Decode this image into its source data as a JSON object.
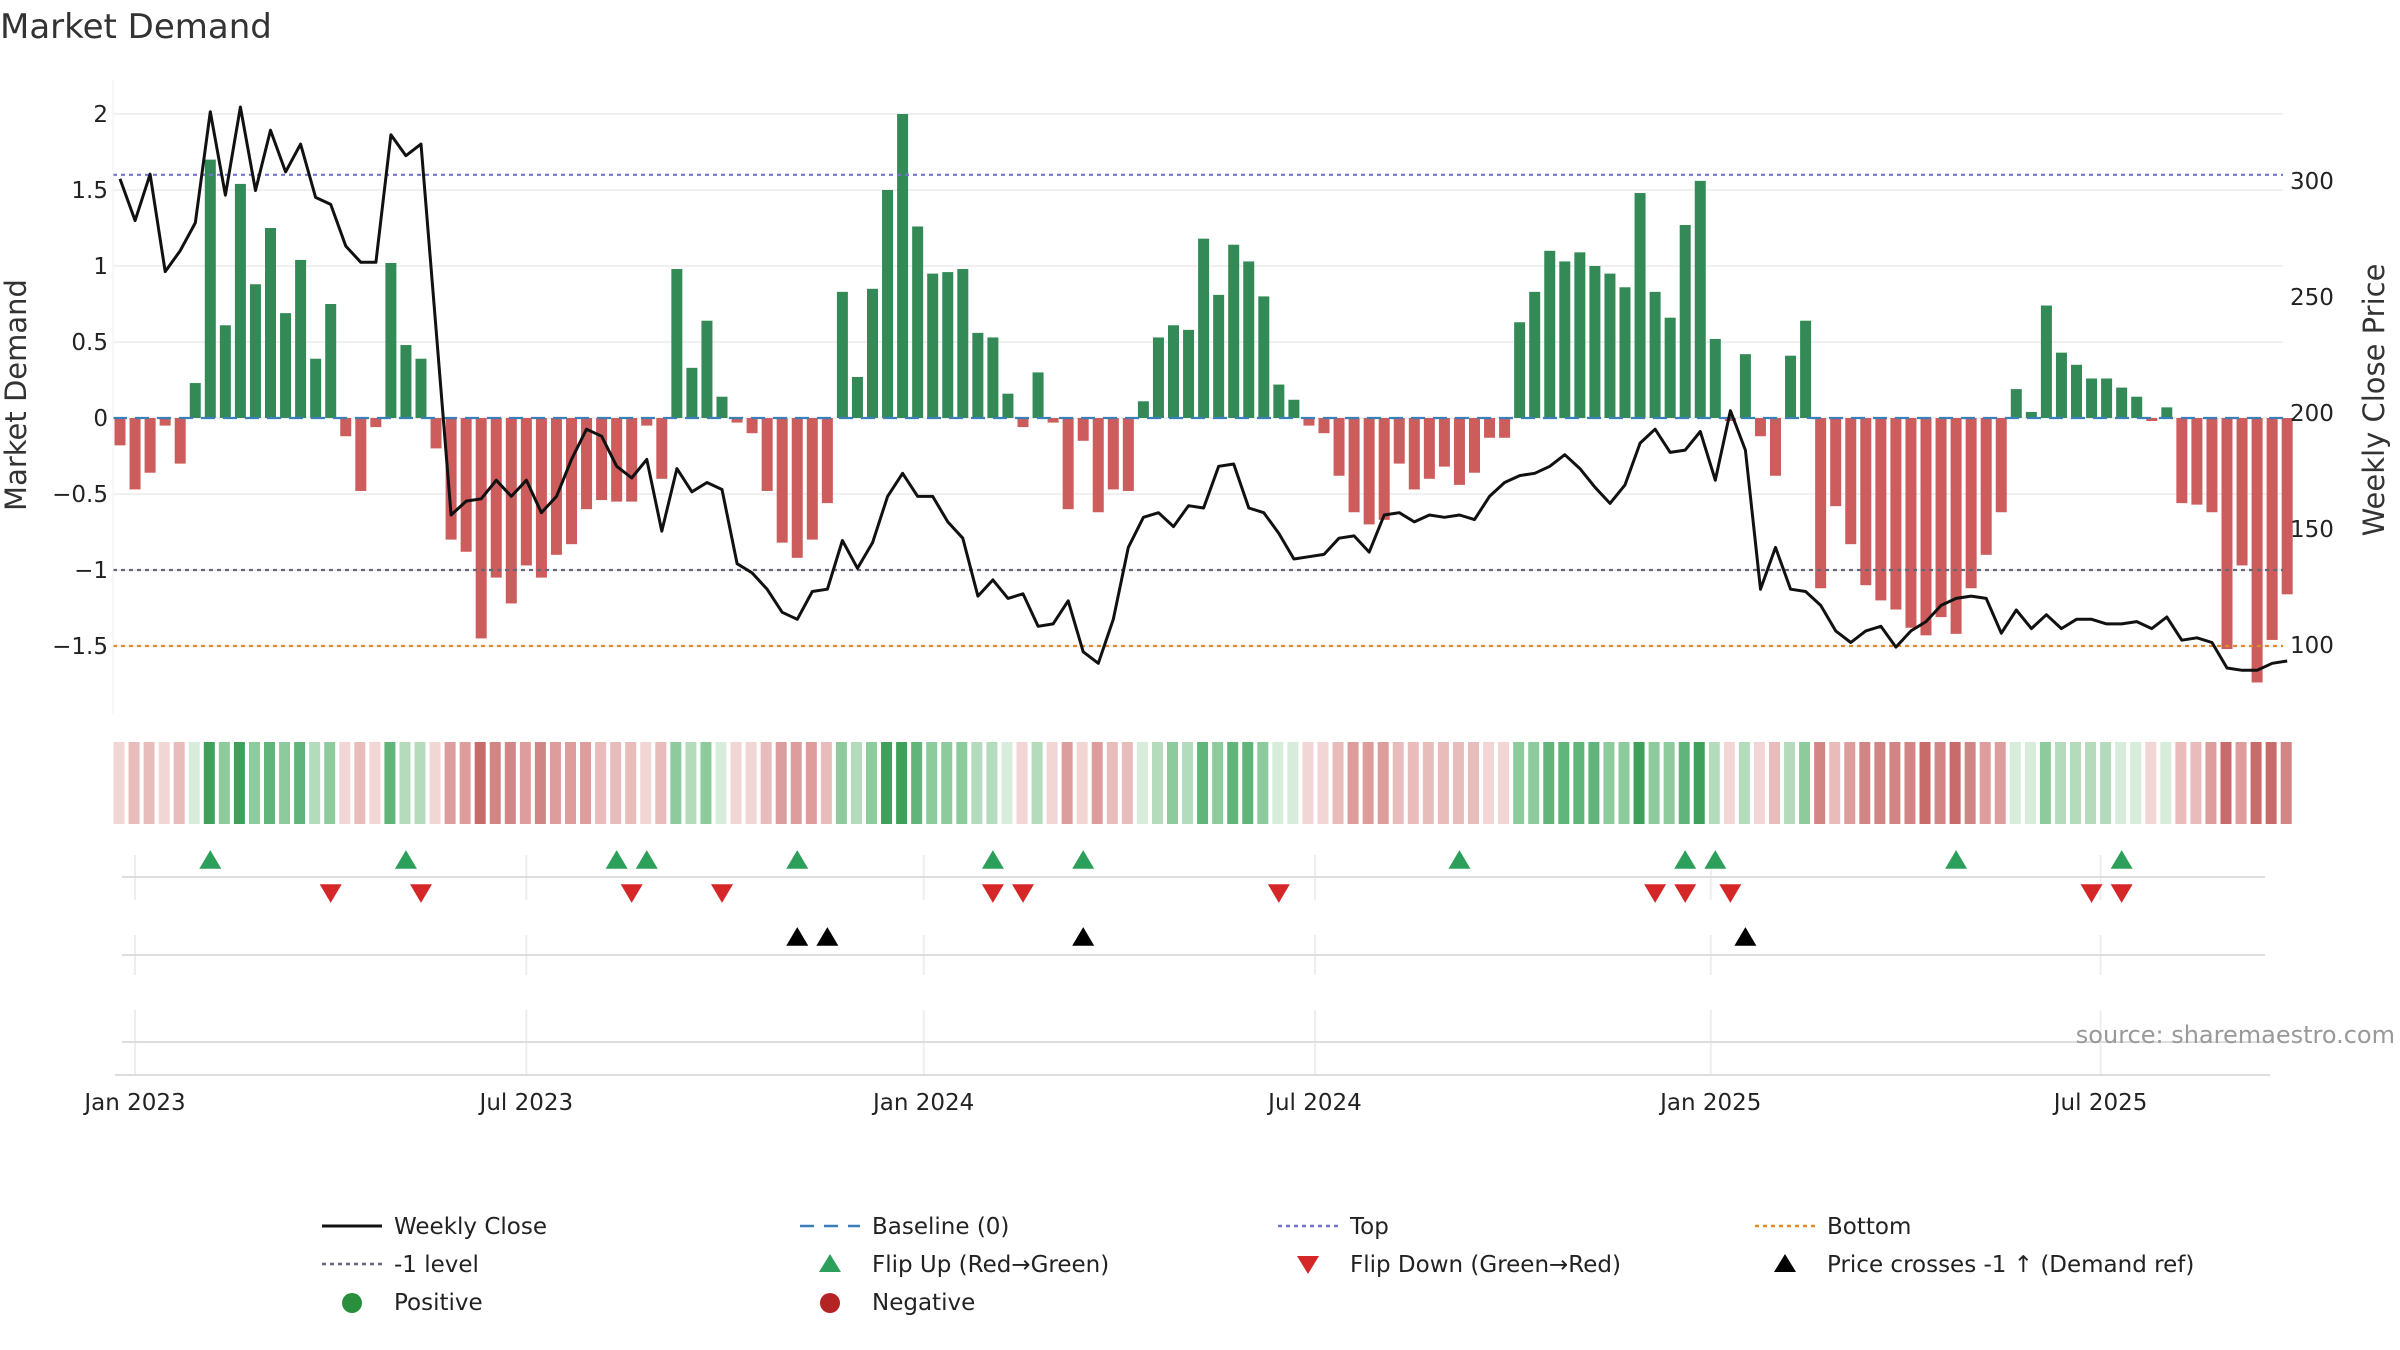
{
  "chart_data": {
    "type": "bar",
    "title": "Market Demand",
    "ylabel": "Market Demand",
    "y2label": "Weekly Close Price",
    "ylim": [
      -1.95,
      2.2
    ],
    "y2lim": [
      67,
      336
    ],
    "yticks": [
      2,
      1.5,
      1,
      0.5,
      0,
      -0.5,
      -1,
      -1.5
    ],
    "ytick_labels": [
      "2",
      "1.5",
      "1",
      "0.5",
      "0",
      "−0.5",
      "−1",
      "−1.5"
    ],
    "y2ticks": [
      300,
      250,
      200,
      150,
      100
    ],
    "y2tick_labels": [
      "300",
      "250",
      "200",
      "150",
      "100"
    ],
    "xticks": [
      {
        "label": "Jan 2023",
        "week": 1
      },
      {
        "label": "Jul 2023",
        "week": 27
      },
      {
        "label": "Jan 2024",
        "week": 53.4
      },
      {
        "label": "Jul 2024",
        "week": 79.4
      },
      {
        "label": "Jan 2025",
        "week": 105.7
      },
      {
        "label": "Jul 2025",
        "week": 131.6
      }
    ],
    "reference_lines": {
      "top": 1.6,
      "minus_one": -1.0,
      "bottom": -1.5,
      "baseline": 0
    },
    "demand": [
      -0.18,
      -0.47,
      -0.36,
      -0.05,
      -0.3,
      0.23,
      1.7,
      0.61,
      1.54,
      0.88,
      1.25,
      0.69,
      1.04,
      0.39,
      0.75,
      -0.12,
      -0.48,
      -0.06,
      1.02,
      0.48,
      0.39,
      -0.2,
      -0.8,
      -0.88,
      -1.45,
      -1.05,
      -1.22,
      -0.97,
      -1.05,
      -0.9,
      -0.83,
      -0.6,
      -0.54,
      -0.55,
      -0.55,
      -0.05,
      -0.4,
      0.98,
      0.33,
      0.64,
      0.14,
      -0.03,
      -0.1,
      -0.48,
      -0.82,
      -0.92,
      -0.8,
      -0.56,
      0.83,
      0.27,
      0.85,
      1.5,
      2.0,
      1.26,
      0.95,
      0.96,
      0.98,
      0.56,
      0.53,
      0.16,
      -0.06,
      0.3,
      -0.03,
      -0.6,
      -0.15,
      -0.62,
      -0.47,
      -0.48,
      0.11,
      0.53,
      0.61,
      0.58,
      1.18,
      0.81,
      1.14,
      1.03,
      0.8,
      0.22,
      0.12,
      -0.05,
      -0.1,
      -0.38,
      -0.62,
      -0.7,
      -0.67,
      -0.3,
      -0.47,
      -0.4,
      -0.32,
      -0.44,
      -0.36,
      -0.13,
      -0.13,
      0.63,
      0.83,
      1.1,
      1.03,
      1.09,
      1.0,
      0.95,
      0.86,
      1.48,
      0.83,
      0.66,
      1.27,
      1.56,
      0.52,
      -0.02,
      0.42,
      -0.12,
      -0.38,
      0.41,
      0.64,
      -1.12,
      -0.58,
      -0.83,
      -1.1,
      -1.2,
      -1.26,
      -1.38,
      -1.43,
      -1.31,
      -1.42,
      -1.12,
      -0.9,
      -0.62,
      0.19,
      0.04,
      0.74,
      0.43,
      0.35,
      0.26,
      0.26,
      0.2,
      0.14,
      -0.02,
      0.07,
      -0.56,
      -0.57,
      -0.62,
      -1.52,
      -0.97,
      -1.74,
      -1.46,
      -1.16
    ],
    "price": [
      301,
      283,
      303,
      261,
      270,
      282,
      330,
      294,
      332,
      296,
      322,
      304,
      316,
      293,
      290,
      272,
      265,
      265,
      320,
      311,
      316,
      236,
      156,
      162,
      163,
      171,
      164,
      171,
      157,
      164,
      180,
      193,
      190,
      177,
      172,
      180,
      149,
      176,
      166,
      170,
      167,
      135,
      131,
      124,
      114,
      111,
      123,
      124,
      145,
      133,
      144,
      164,
      174,
      164,
      164,
      153,
      146,
      121,
      128,
      120,
      122,
      108,
      109,
      119,
      97,
      92,
      111,
      142,
      155,
      157,
      151,
      160,
      159,
      177,
      178,
      159,
      157,
      148,
      137,
      138,
      139,
      146,
      147,
      140,
      156,
      157,
      153,
      156,
      155,
      156,
      154,
      164,
      170,
      173,
      174,
      177,
      182,
      176,
      168,
      161,
      169,
      187,
      193,
      183,
      184,
      192,
      171,
      201,
      184,
      124,
      142,
      124,
      123,
      117,
      106,
      101,
      106,
      108,
      99,
      106,
      110,
      117,
      120,
      121,
      120,
      105,
      115,
      107,
      113,
      107,
      111,
      111,
      109,
      109,
      110,
      107,
      112,
      102,
      103,
      101,
      90,
      89,
      89,
      92,
      93
    ],
    "color_band": {
      "positive_colors": [
        "#d7ecdb",
        "#b5dbbd",
        "#8ecb9c",
        "#62b57a",
        "#3fa05c"
      ],
      "negative_colors": [
        "#f2d6d6",
        "#e9bcbc",
        "#dd9d9d",
        "#d18585",
        "#c96b6b"
      ]
    },
    "flip_up_weeks": [
      6,
      19,
      33,
      35,
      45,
      58,
      64,
      89,
      104,
      106,
      122,
      133
    ],
    "flip_down_weeks": [
      14,
      20,
      34,
      40,
      58,
      60,
      77,
      102,
      104,
      107,
      131,
      133
    ],
    "price_cross_weeks": [
      45,
      47,
      64,
      108
    ],
    "legend": [
      {
        "label": "Weekly Close",
        "marker": "solid-line",
        "color": "#111111"
      },
      {
        "label": "Baseline (0)",
        "marker": "dash-line",
        "color": "#3a7fb8"
      },
      {
        "label": "Top",
        "marker": "dotted-line",
        "color": "#7474cf"
      },
      {
        "label": "Bottom",
        "marker": "dotted-line",
        "color": "#e08a28"
      },
      {
        "label": "-1 level",
        "marker": "dotted-line",
        "color": "#666677"
      },
      {
        "label": "Flip Up (Red→Green)",
        "marker": "triangle-up",
        "color": "#2ca05a"
      },
      {
        "label": "Flip Down (Green→Red)",
        "marker": "triangle-down",
        "color": "#d62728"
      },
      {
        "label": "Price crosses -1 ↑ (Demand ref)",
        "marker": "triangle-up",
        "color": "#000000"
      },
      {
        "label": "Positive",
        "marker": "circle",
        "color": "#2a8f3c"
      },
      {
        "label": "Negative",
        "marker": "circle",
        "color": "#b52424"
      }
    ],
    "bar_colors": {
      "positive": "#338a57",
      "negative": "#cd5c5c"
    }
  },
  "source": "source: sharemaestro.com"
}
